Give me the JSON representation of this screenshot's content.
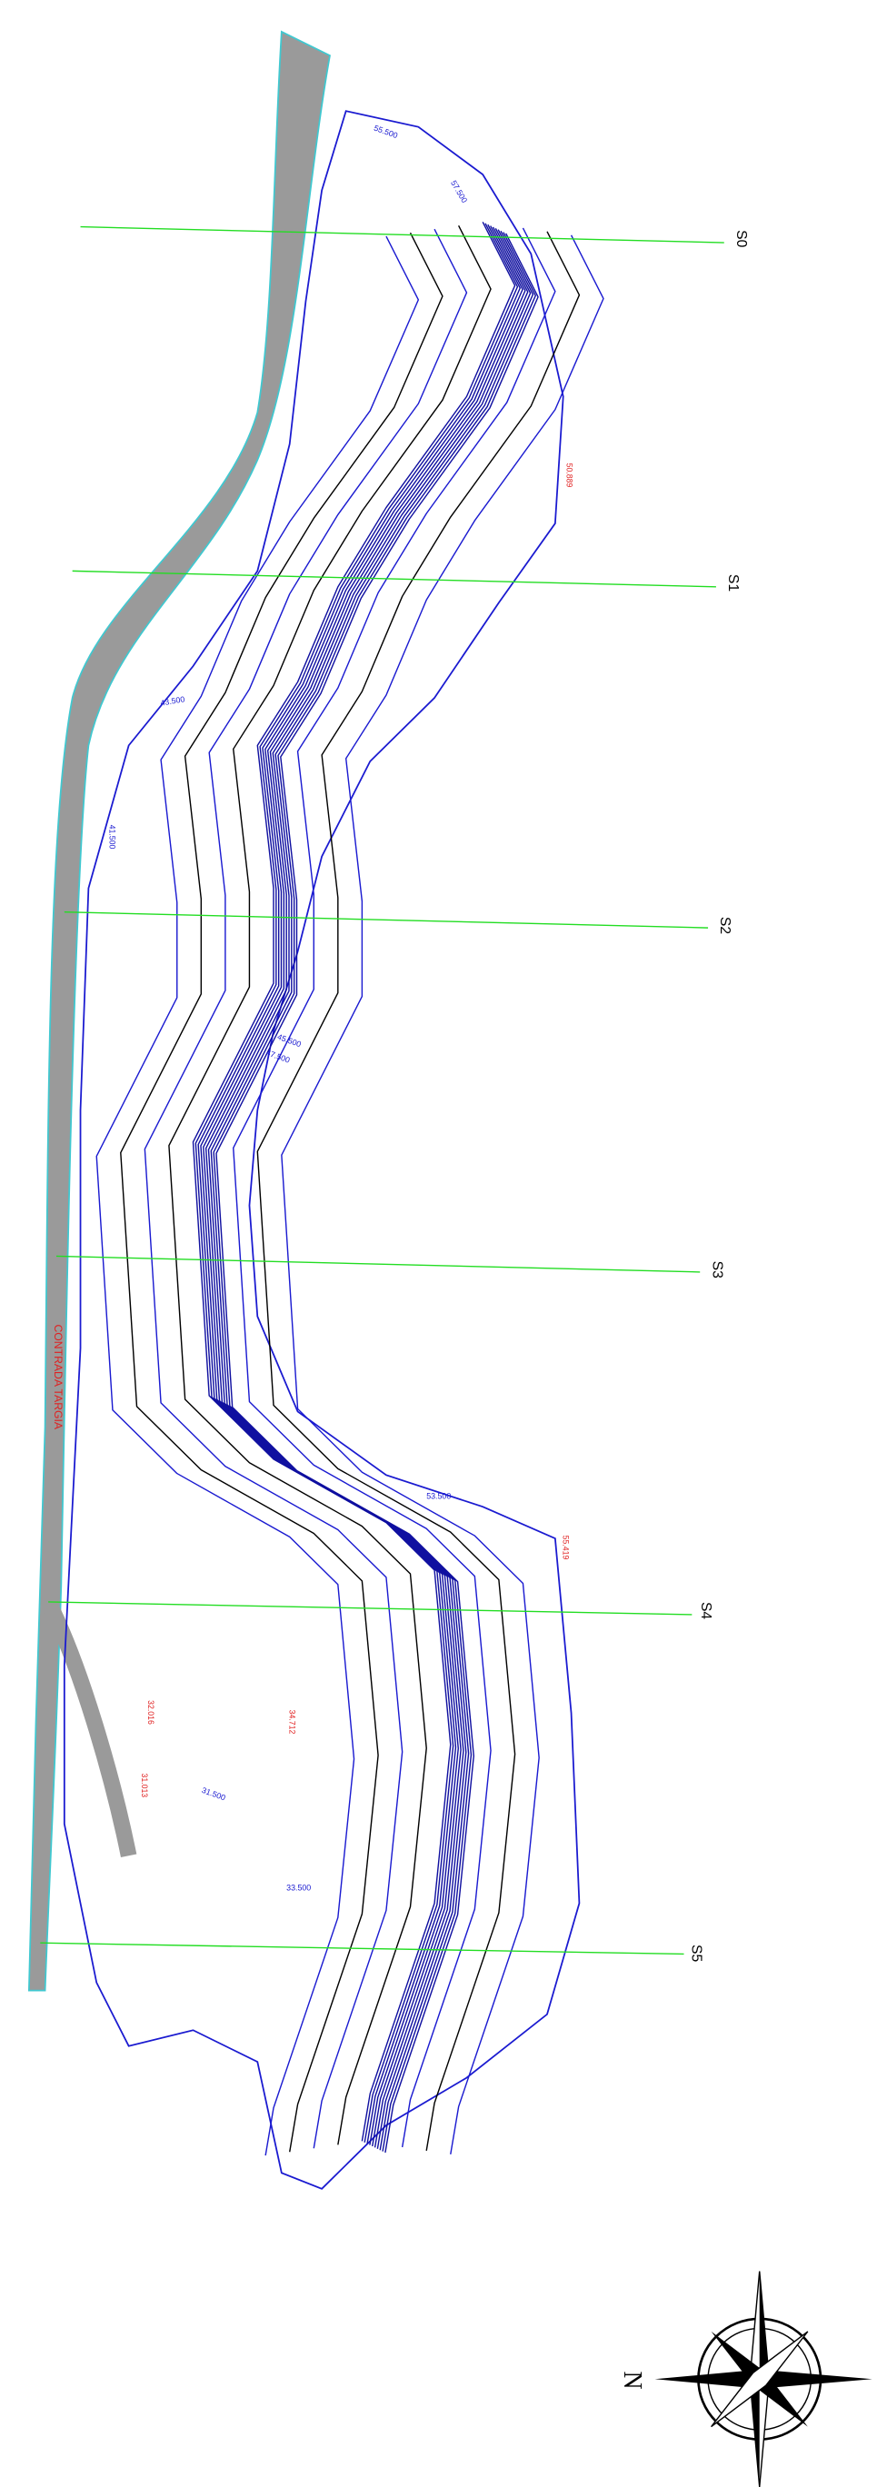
{
  "sections": [
    "S0",
    "S1",
    "S2",
    "S3",
    "S4",
    "S5"
  ],
  "place_label": "CONTRADA TARGIA",
  "spot_heights": [
    "55.500",
    "57.500",
    "43.500",
    "41.500",
    "45.500",
    "47.500",
    "53.500",
    "31.500",
    "33.500",
    "50.889",
    "55.419",
    "34.712",
    "32.016",
    "31.013"
  ],
  "compass": {
    "north": "N"
  }
}
